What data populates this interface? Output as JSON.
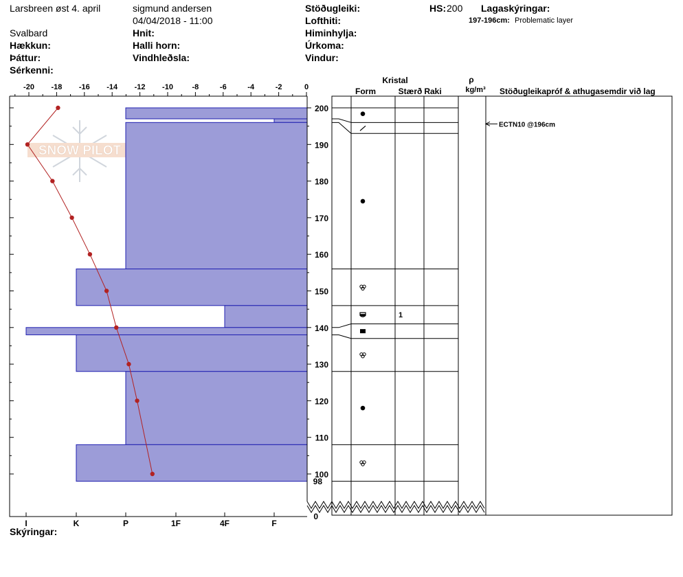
{
  "header": {
    "location": "Larsbreen øst 4. april",
    "region": "Svalbard",
    "observer": "sigmund andersen",
    "datetime": "04/04/2018 - 11:00",
    "labels": {
      "haekkun": "Hækkun:",
      "thattur": "Þáttur:",
      "serkenni": "Sérkenni:",
      "hnit": "Hnit:",
      "halli": "Halli horn:",
      "vindhleosla": "Vindhleðsla:",
      "stodugleiki": "Stöðugleiki:",
      "lofthiti": "Lofthiti:",
      "himinhylja": "Himinhylja:",
      "urkoma": "Úrkoma:",
      "vindur": "Vindur:",
      "hs": "HS:",
      "lagaskyringar": "Lagaskýringar:"
    },
    "hs_value": "200",
    "layer_note_range": "197-196cm:",
    "layer_note_text": "Problematic layer"
  },
  "columns": {
    "kristal": "Kristal",
    "form": "Form",
    "staerd": "Stærð",
    "raki": "Raki",
    "rho": "ρ",
    "density_unit": "kg/m³",
    "tests": "Stöðugleikapróf & athugasemdir við lag"
  },
  "footer": {
    "skyringar": "Skýringar:"
  },
  "watermark": "SNOW PILOT",
  "colors": {
    "hardness_fill": "#9c9cd8",
    "hardness_stroke": "#2020b0",
    "temp_line": "#b22222"
  },
  "chart_data": {
    "type": "snow-profile",
    "temperature_axis": {
      "ticks": [
        -20,
        -18,
        -16,
        -14,
        -12,
        -10,
        -8,
        -6,
        -4,
        -2,
        0
      ],
      "range": [
        -21,
        0
      ]
    },
    "hardness_axis": {
      "ticks": [
        "I",
        "K",
        "P",
        "1F",
        "4F",
        "F"
      ]
    },
    "height_axis": {
      "ticks": [
        200,
        190,
        180,
        170,
        160,
        150,
        140,
        130,
        120,
        110,
        100
      ],
      "labels_extra": [
        "98",
        "0"
      ],
      "range": [
        98,
        203
      ]
    },
    "temperature_profile": [
      {
        "height": 200,
        "temp": -17.9
      },
      {
        "height": 190,
        "temp": -20.1
      },
      {
        "height": 180,
        "temp": -18.3
      },
      {
        "height": 170,
        "temp": -16.9
      },
      {
        "height": 160,
        "temp": -15.6
      },
      {
        "height": 150,
        "temp": -14.4
      },
      {
        "height": 140,
        "temp": -13.7
      },
      {
        "height": 130,
        "temp": -12.8
      },
      {
        "height": 120,
        "temp": -12.2
      },
      {
        "height": 100,
        "temp": -11.1
      }
    ],
    "hardness_layers": [
      {
        "top": 200,
        "bottom": 197,
        "hardness": "P"
      },
      {
        "top": 197,
        "bottom": 196,
        "hardness": "F"
      },
      {
        "top": 196,
        "bottom": 156,
        "hardness": "P"
      },
      {
        "top": 156,
        "bottom": 146,
        "hardness": "K"
      },
      {
        "top": 146,
        "bottom": 140,
        "hardness": "4F"
      },
      {
        "top": 140,
        "bottom": 138,
        "hardness": "I"
      },
      {
        "top": 138,
        "bottom": 128,
        "hardness": "K"
      },
      {
        "top": 128,
        "bottom": 108,
        "hardness": "P"
      },
      {
        "top": 108,
        "bottom": 98,
        "hardness": "K"
      }
    ],
    "crystal_layers": [
      {
        "top": 200,
        "bottom": 196,
        "form": "filled-circle",
        "size": ""
      },
      {
        "top": 196,
        "bottom": 193,
        "form": "slash",
        "size": ""
      },
      {
        "top": 193,
        "bottom": 156,
        "form": "filled-circle",
        "size": ""
      },
      {
        "top": 156,
        "bottom": 146,
        "form": "faceted-rounded",
        "size": ""
      },
      {
        "top": 146,
        "bottom": 141,
        "form": "cup",
        "size": "1"
      },
      {
        "top": 141,
        "bottom": 137,
        "form": "filled-square",
        "size": ""
      },
      {
        "top": 137,
        "bottom": 128,
        "form": "faceted-rounded",
        "size": ""
      },
      {
        "top": 128,
        "bottom": 108,
        "form": "filled-circle",
        "size": ""
      },
      {
        "top": 108,
        "bottom": 98,
        "form": "faceted-rounded",
        "size": ""
      }
    ],
    "stability_tests": [
      {
        "height": 196,
        "label": "ECTN10 @196cm"
      }
    ]
  }
}
